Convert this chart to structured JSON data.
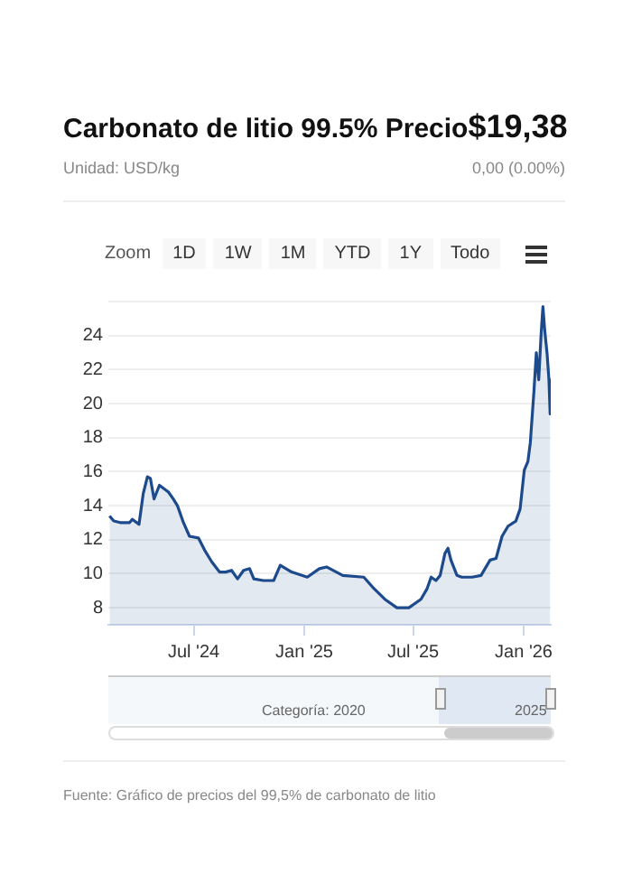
{
  "chart_data": {
    "type": "area",
    "title": "Carbonato de litio 99.5% Precio",
    "subtitle": "Unidad: USD/kg",
    "annotations": [
      "$19,38",
      "0,00 (0.00%)",
      "Zoom",
      "1D",
      "1W",
      "1M",
      "YTD",
      "1Y",
      "Todo",
      "Categoría: 2020",
      "2025",
      "Fuente: Gráfico de precios del 99,5% de carbonato de litio"
    ],
    "x": [
      "2024-02-12",
      "2024-02-19",
      "2024-03-02",
      "2024-03-16",
      "2024-03-21",
      "2024-04-01",
      "2024-04-08",
      "2024-04-15",
      "2024-04-20",
      "2024-04-26",
      "2024-05-05",
      "2024-05-20",
      "2024-05-28",
      "2024-06-04",
      "2024-06-14",
      "2024-06-24",
      "2024-07-09",
      "2024-07-19",
      "2024-07-31",
      "2024-08-13",
      "2024-08-23",
      "2024-09-02",
      "2024-09-12",
      "2024-09-22",
      "2024-10-02",
      "2024-10-09",
      "2024-10-25",
      "2024-11-11",
      "2024-11-22",
      "2024-12-11",
      "2025-01-06",
      "2025-01-26",
      "2025-02-07",
      "2025-03-06",
      "2025-04-10",
      "2025-04-25",
      "2025-05-15",
      "2025-06-04",
      "2025-06-24",
      "2025-07-14",
      "2025-07-24",
      "2025-07-31",
      "2025-08-08",
      "2025-08-15",
      "2025-08-23",
      "2025-08-28",
      "2025-09-02",
      "2025-09-12",
      "2025-09-20",
      "2025-10-07",
      "2025-10-22",
      "2025-11-06",
      "2025-11-16",
      "2025-11-26",
      "2025-12-06",
      "2025-12-19",
      "2025-12-26",
      "2026-01-02",
      "2026-01-08",
      "2026-01-12",
      "2026-01-18",
      "2026-01-22",
      "2026-01-26",
      "2026-01-30",
      "2026-02-02",
      "2026-02-05",
      "2026-02-09",
      "2026-02-12",
      "2026-02-14"
    ],
    "series": [
      {
        "color": "#1c4a8c",
        "values": [
          13.4,
          13.1,
          13.0,
          13.0,
          13.2,
          12.9,
          14.7,
          15.7,
          15.6,
          14.4,
          15.2,
          14.8,
          14.4,
          14.0,
          13.0,
          12.2,
          12.1,
          11.4,
          10.7,
          10.1,
          10.1,
          10.2,
          9.7,
          10.2,
          10.3,
          9.7,
          9.6,
          9.6,
          10.5,
          10.1,
          9.8,
          10.3,
          10.4,
          9.9,
          9.8,
          9.2,
          8.5,
          8.0,
          8.0,
          8.5,
          9.1,
          9.8,
          9.6,
          9.9,
          11.2,
          11.5,
          10.8,
          9.9,
          9.8,
          9.8,
          9.9,
          10.8,
          10.9,
          12.2,
          12.8,
          13.1,
          13.8,
          16.1,
          16.6,
          17.7,
          20.7,
          23.0,
          21.4,
          24.1,
          25.7,
          24.3,
          22.9,
          21.4,
          19.4
        ]
      }
    ],
    "xlim": [
      "2024-02-10",
      "2026-02-15"
    ],
    "xticks": [
      {
        "value": "2024-07-01",
        "label": "Jul '24"
      },
      {
        "value": "2025-01-01",
        "label": "Jan '25"
      },
      {
        "value": "2025-07-01",
        "label": "Jul '25"
      },
      {
        "value": "2026-01-01",
        "label": "Jan '26"
      }
    ],
    "ylim": [
      7,
      26
    ],
    "yticks": [
      8,
      10,
      12,
      14,
      16,
      18,
      20,
      22,
      24,
      {
        "value": 26,
        "label": null
      }
    ],
    "grid": "y",
    "legend": false,
    "marker": "none",
    "line_style": "solid"
  }
}
